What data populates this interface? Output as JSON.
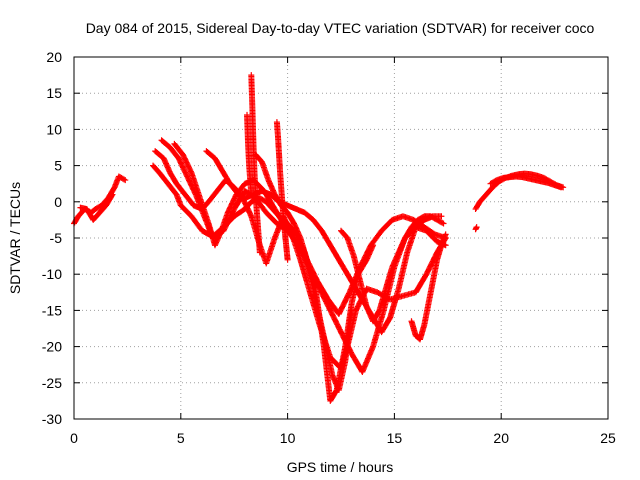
{
  "chart_data": {
    "type": "scatter",
    "title": "Day 084 of 2015, Sidereal Day-to-day VTEC variation (SDTVAR) for receiver coco",
    "xlabel": "GPS time / hours",
    "ylabel": "SDTVAR / TECUs",
    "xlim": [
      0,
      25
    ],
    "ylim": [
      -30,
      20
    ],
    "xticks": [
      0,
      5,
      10,
      15,
      20,
      25
    ],
    "yticks": [
      -30,
      -25,
      -20,
      -15,
      -10,
      -5,
      0,
      5,
      10,
      15,
      20
    ],
    "grid": true,
    "marker": "+",
    "color": "#ff0000",
    "series": [
      {
        "x": [
          0.0,
          0.2,
          0.5,
          0.8,
          1.0,
          1.3,
          1.6,
          1.9,
          2.1,
          2.4
        ],
        "y": [
          -3.0,
          -2.0,
          -1.0,
          -1.5,
          -1.0,
          -0.5,
          0.5,
          2.0,
          3.5,
          3.0
        ]
      },
      {
        "x": [
          0.3,
          0.6,
          0.9,
          1.2,
          1.5,
          1.8
        ],
        "y": [
          -0.8,
          -1.0,
          -2.5,
          -1.5,
          -0.5,
          1.0
        ]
      },
      {
        "x": [
          3.7,
          4.0,
          4.4,
          4.8,
          5.0,
          5.5,
          6.0,
          6.5,
          7.0,
          7.5,
          8.0,
          8.3,
          8.7,
          9.0,
          9.3,
          9.6,
          10.0,
          10.4,
          10.8,
          11.3,
          11.7,
          12.0,
          12.3,
          12.7,
          13.0,
          13.3,
          13.7,
          14.0
        ],
        "y": [
          5.0,
          4.0,
          2.5,
          1.0,
          -0.5,
          -2.0,
          -4.0,
          -4.8,
          -3.5,
          -2.0,
          -1.0,
          0.0,
          0.5,
          0.0,
          -1.0,
          -2.0,
          -3.0,
          -4.5,
          -7.0,
          -12.0,
          -20.0,
          -27.5,
          -26.0,
          -20.0,
          -14.0,
          -10.0,
          -8.0,
          -6.0
        ]
      },
      {
        "x": [
          3.8,
          4.2,
          4.5,
          4.8,
          5.2,
          5.6,
          6.0,
          6.3,
          6.7,
          7.1,
          7.5,
          7.9,
          8.3,
          8.7,
          9.0,
          9.4,
          9.8,
          10.2,
          10.6,
          11.0,
          11.5,
          12.0,
          12.5,
          12.8,
          13.2,
          13.7,
          14.2,
          14.8,
          15.4,
          16.0,
          16.5,
          17.0,
          17.4
        ],
        "y": [
          7.0,
          6.0,
          4.0,
          2.5,
          1.0,
          -0.5,
          -1.0,
          0.0,
          1.5,
          3.0,
          2.0,
          0.5,
          -2.0,
          -6.0,
          -8.5,
          -5.0,
          -2.0,
          -4.5,
          -8.0,
          -12.0,
          -17.0,
          -21.5,
          -23.0,
          -20.0,
          -15.0,
          -12.0,
          -12.5,
          -13.5,
          -13.0,
          -12.5,
          -10.0,
          -7.0,
          -5.0
        ]
      },
      {
        "x": [
          4.1,
          4.5,
          4.9,
          5.3,
          5.7,
          6.1,
          6.5,
          7.0,
          7.5,
          8.0,
          8.5,
          9.0,
          9.5,
          10.0,
          10.5,
          11.0,
          11.5,
          12.0,
          12.5,
          13.0,
          13.5,
          14.0,
          14.5,
          15.0,
          15.5,
          16.0,
          16.5,
          17.0,
          17.4
        ],
        "y": [
          8.5,
          7.5,
          6.0,
          3.5,
          1.0,
          -2.0,
          -5.0,
          -4.0,
          -1.0,
          1.5,
          0.5,
          -1.5,
          -3.0,
          -4.0,
          -6.0,
          -9.0,
          -12.0,
          -15.0,
          -18.0,
          -21.0,
          -23.5,
          -20.0,
          -15.0,
          -9.0,
          -5.0,
          -3.5,
          -4.0,
          -5.5,
          -6.0
        ]
      },
      {
        "x": [
          4.7,
          5.1,
          5.5,
          5.9,
          6.3,
          6.6,
          6.9,
          7.2,
          7.6,
          8.0,
          8.4,
          8.9,
          9.4,
          9.9,
          10.4,
          10.9,
          11.4,
          11.9,
          12.4,
          12.9,
          13.4,
          13.9,
          14.4,
          14.9,
          15.4,
          15.9,
          16.4,
          16.9,
          17.4
        ],
        "y": [
          8.0,
          6.5,
          4.0,
          0.5,
          -3.0,
          -6.0,
          -4.0,
          -1.5,
          1.0,
          2.5,
          3.0,
          1.5,
          -1.0,
          -3.5,
          -5.5,
          -8.0,
          -11.0,
          -13.5,
          -15.5,
          -12.5,
          -9.0,
          -6.0,
          -4.0,
          -2.5,
          -2.0,
          -2.5,
          -3.5,
          -4.5,
          -5.0
        ]
      },
      {
        "x": [
          6.2,
          6.6,
          7.0,
          7.3,
          7.7,
          8.0,
          8.4,
          8.8,
          9.2,
          9.6,
          10.0,
          10.4,
          10.8,
          11.2,
          11.6,
          12.0,
          12.4,
          12.8,
          13.2,
          13.6,
          14.0,
          14.4,
          14.8,
          15.2,
          15.6,
          16.0,
          16.4,
          16.8,
          17.2
        ],
        "y": [
          7.0,
          6.0,
          4.0,
          2.5,
          1.0,
          0.5,
          1.0,
          1.5,
          1.0,
          0.0,
          -0.5,
          -1.0,
          -1.5,
          -2.5,
          -4.0,
          -6.0,
          -8.0,
          -10.0,
          -12.0,
          -14.0,
          -16.0,
          -18.0,
          -16.0,
          -12.0,
          -7.0,
          -3.5,
          -2.5,
          -2.0,
          -2.0
        ]
      },
      {
        "x": [
          8.3,
          8.35,
          8.4,
          8.45,
          8.5,
          8.55,
          8.6,
          8.65,
          8.7
        ],
        "y": [
          17.5,
          13.0,
          8.0,
          4.0,
          1.0,
          -1.0,
          -3.0,
          -5.0,
          -7.0
        ]
      },
      {
        "x": [
          8.1,
          8.15,
          8.2,
          8.25,
          8.3
        ],
        "y": [
          12.0,
          8.0,
          5.0,
          3.0,
          1.0
        ]
      },
      {
        "x": [
          9.5,
          9.55,
          9.6,
          9.65,
          9.7,
          9.75,
          9.8,
          9.85,
          9.9,
          9.95,
          10.0
        ],
        "y": [
          11.0,
          9.0,
          6.5,
          4.0,
          2.0,
          0.0,
          -2.0,
          -3.5,
          -5.0,
          -6.5,
          -8.0
        ]
      },
      {
        "x": [
          8.5,
          8.8,
          9.1,
          9.4,
          9.7,
          10.0,
          10.3,
          10.6,
          10.9,
          11.2,
          11.5,
          11.8,
          12.1,
          12.4,
          12.7,
          13.0
        ],
        "y": [
          6.5,
          5.5,
          3.0,
          1.0,
          -0.5,
          -1.5,
          -3.0,
          -5.0,
          -8.0,
          -12.0,
          -16.0,
          -20.0,
          -24.0,
          -26.0,
          -22.0,
          -15.0
        ]
      },
      {
        "x": [
          12.5,
          12.8,
          13.1,
          13.4,
          13.7,
          14.0,
          14.3,
          14.6,
          14.9,
          15.2,
          15.5,
          15.8,
          16.1,
          16.4,
          16.7,
          17.0,
          17.3
        ],
        "y": [
          -4.0,
          -5.0,
          -7.5,
          -11.0,
          -14.5,
          -16.5,
          -15.0,
          -12.0,
          -9.0,
          -7.0,
          -5.0,
          -3.5,
          -2.5,
          -2.0,
          -2.0,
          -2.5,
          -3.0
        ]
      },
      {
        "x": [
          15.8,
          16.0,
          16.2,
          16.4,
          16.6,
          16.8,
          17.0,
          17.2,
          17.4
        ],
        "y": [
          -16.5,
          -18.5,
          -19.0,
          -17.0,
          -14.0,
          -11.0,
          -8.0,
          -6.0,
          -4.5
        ]
      },
      {
        "x": [
          18.8,
          18.9,
          19.0,
          19.3,
          19.6,
          19.9,
          20.2,
          20.5,
          20.8,
          21.1,
          21.4,
          21.7,
          22.0,
          22.3,
          22.6,
          22.9
        ],
        "y": [
          -1.0,
          -0.5,
          0.0,
          1.0,
          2.0,
          2.8,
          3.3,
          3.6,
          3.8,
          3.9,
          3.8,
          3.6,
          3.3,
          2.8,
          2.3,
          2.0
        ]
      },
      {
        "x": [
          19.5,
          19.8,
          20.1,
          20.4,
          20.7,
          21.0,
          21.3,
          21.6,
          21.9,
          22.2,
          22.5,
          22.8
        ],
        "y": [
          2.5,
          3.0,
          3.3,
          3.4,
          3.5,
          3.4,
          3.2,
          3.0,
          2.8,
          2.6,
          2.3,
          2.0
        ]
      },
      {
        "x": [
          18.8,
          18.85
        ],
        "y": [
          -3.8,
          -3.5
        ]
      }
    ]
  }
}
